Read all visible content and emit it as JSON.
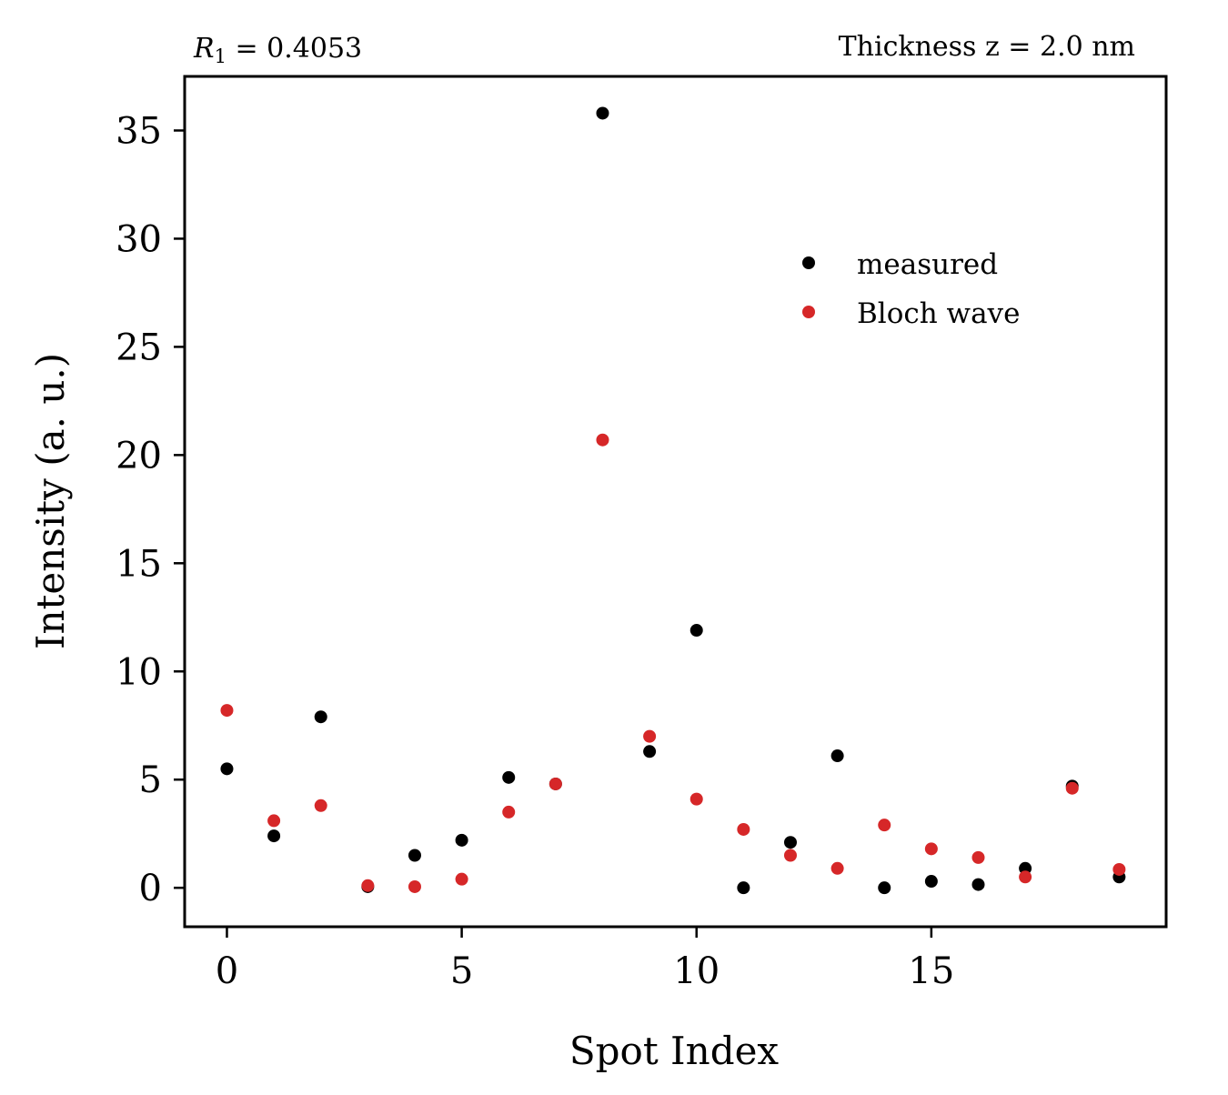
{
  "chart_data": {
    "type": "scatter",
    "title_left": "R1 = 0.4053",
    "title_left_parts": {
      "symbol": "R",
      "subscript": "1",
      "rest": " = 0.4053"
    },
    "title_right": "Thickness z = 2.0 nm",
    "xlabel": "Spot Index",
    "ylabel": "Intensity (a. u.)",
    "xlim": [
      -0.9,
      20.0
    ],
    "ylim": [
      -1.8,
      37.5
    ],
    "xticks": [
      0,
      5,
      10,
      15
    ],
    "yticks": [
      0,
      5,
      10,
      15,
      20,
      25,
      30,
      35
    ],
    "legend_position": "upper-right",
    "grid": false,
    "x": [
      0,
      1,
      2,
      3,
      4,
      5,
      6,
      7,
      8,
      9,
      10,
      11,
      12,
      13,
      14,
      15,
      16,
      17,
      18,
      19
    ],
    "series": [
      {
        "name": "measured",
        "color": "#000000",
        "values": [
          5.5,
          2.4,
          7.9,
          0.05,
          1.5,
          2.2,
          5.1,
          4.8,
          35.8,
          6.3,
          11.9,
          0.0,
          2.1,
          6.1,
          0.0,
          0.3,
          0.15,
          0.9,
          4.7,
          0.5
        ]
      },
      {
        "name": "Bloch wave",
        "color": "#d62728",
        "values": [
          8.2,
          3.1,
          3.8,
          0.1,
          0.05,
          0.4,
          3.5,
          4.8,
          20.7,
          7.0,
          4.1,
          2.7,
          1.5,
          0.9,
          2.9,
          1.8,
          1.4,
          0.5,
          4.6,
          0.85
        ]
      }
    ]
  }
}
